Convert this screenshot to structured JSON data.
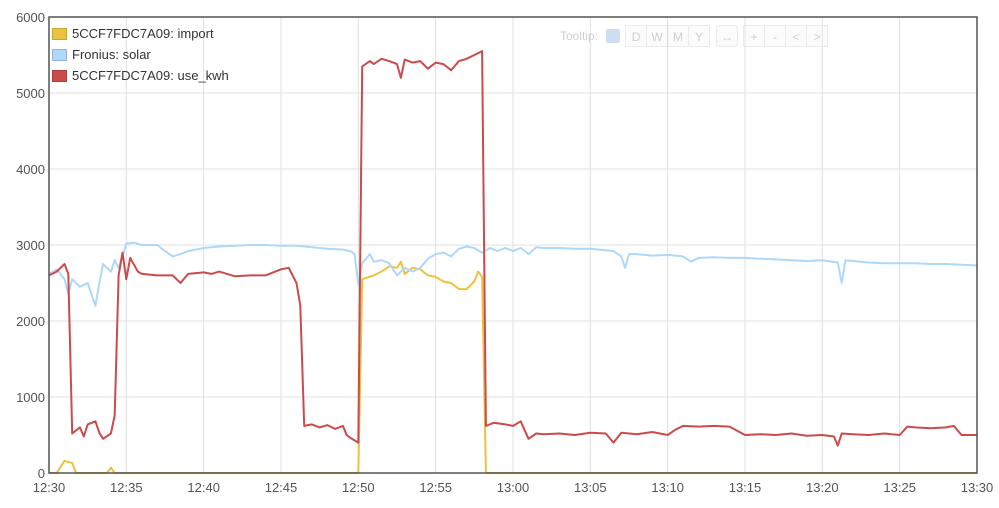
{
  "toolbar": {
    "tooltip_label": "Tooltip:",
    "range_buttons": [
      "D",
      "W",
      "M",
      "Y"
    ],
    "extra_buttons": [
      "↔",
      "+",
      "-",
      "<",
      ">"
    ]
  },
  "colors": {
    "import": "#edc240",
    "solar": "#afd8f8",
    "use_kwh": "#cb4b4b",
    "grid": "#e0e0e0",
    "axis": "#545454"
  },
  "chart_data": {
    "type": "line",
    "title": "",
    "xlabel": "",
    "ylabel": "",
    "xlim": [
      "12:30",
      "13:30"
    ],
    "ylim": [
      0,
      6000
    ],
    "x_ticks": [
      "12:30",
      "12:35",
      "12:40",
      "12:45",
      "12:50",
      "12:55",
      "13:00",
      "13:05",
      "13:10",
      "13:15",
      "13:20",
      "13:25",
      "13:30"
    ],
    "y_ticks": [
      0,
      1000,
      2000,
      3000,
      4000,
      5000,
      6000
    ],
    "grid": true,
    "legend_position": "top-left",
    "series": [
      {
        "name": "5CCF7FDC7A09: import",
        "color_key": "import",
        "points": [
          [
            "12:30:00",
            0
          ],
          [
            "12:30:30",
            0
          ],
          [
            "12:31:00",
            160
          ],
          [
            "12:31:30",
            130
          ],
          [
            "12:31:45",
            0
          ],
          [
            "12:33:45",
            0
          ],
          [
            "12:34:00",
            70
          ],
          [
            "12:34:15",
            0
          ],
          [
            "12:50:00",
            0
          ],
          [
            "12:50:15",
            2550
          ],
          [
            "12:51:00",
            2600
          ],
          [
            "12:51:30",
            2650
          ],
          [
            "12:52:00",
            2720
          ],
          [
            "12:52:30",
            2700
          ],
          [
            "12:52:45",
            2780
          ],
          [
            "12:53:00",
            2620
          ],
          [
            "12:53:30",
            2700
          ],
          [
            "12:54:00",
            2680
          ],
          [
            "12:54:30",
            2600
          ],
          [
            "12:55:00",
            2580
          ],
          [
            "12:55:30",
            2520
          ],
          [
            "12:56:00",
            2500
          ],
          [
            "12:56:30",
            2420
          ],
          [
            "12:57:00",
            2420
          ],
          [
            "12:57:30",
            2520
          ],
          [
            "12:57:45",
            2650
          ],
          [
            "12:58:00",
            2580
          ],
          [
            "12:58:15",
            0
          ],
          [
            "13:30:00",
            0
          ]
        ]
      },
      {
        "name": "Fronius: solar",
        "color_key": "solar",
        "points": [
          [
            "12:30:00",
            2620
          ],
          [
            "12:30:30",
            2680
          ],
          [
            "12:31:00",
            2550
          ],
          [
            "12:31:15",
            2350
          ],
          [
            "12:31:30",
            2550
          ],
          [
            "12:32:00",
            2450
          ],
          [
            "12:32:30",
            2500
          ],
          [
            "12:33:00",
            2200
          ],
          [
            "12:33:15",
            2500
          ],
          [
            "12:33:30",
            2750
          ],
          [
            "12:34:00",
            2650
          ],
          [
            "12:34:15",
            2800
          ],
          [
            "12:34:30",
            2700
          ],
          [
            "12:34:45",
            2850
          ],
          [
            "12:35:00",
            3020
          ],
          [
            "12:35:30",
            3030
          ],
          [
            "12:36:00",
            3000
          ],
          [
            "12:37:00",
            3000
          ],
          [
            "12:37:30",
            2920
          ],
          [
            "12:38:00",
            2850
          ],
          [
            "12:38:30",
            2880
          ],
          [
            "12:39:00",
            2920
          ],
          [
            "12:40:00",
            2960
          ],
          [
            "12:41:00",
            2980
          ],
          [
            "12:42:00",
            2990
          ],
          [
            "12:43:00",
            3000
          ],
          [
            "12:44:00",
            3000
          ],
          [
            "12:45:00",
            2990
          ],
          [
            "12:46:00",
            2990
          ],
          [
            "12:47:00",
            2970
          ],
          [
            "12:48:00",
            2950
          ],
          [
            "12:49:00",
            2940
          ],
          [
            "12:49:30",
            2920
          ],
          [
            "12:49:45",
            2880
          ],
          [
            "12:50:00",
            2480
          ],
          [
            "12:50:15",
            2760
          ],
          [
            "12:50:45",
            2880
          ],
          [
            "12:51:00",
            2780
          ],
          [
            "12:51:30",
            2800
          ],
          [
            "12:52:00",
            2760
          ],
          [
            "12:52:30",
            2600
          ],
          [
            "12:53:00",
            2700
          ],
          [
            "12:53:30",
            2650
          ],
          [
            "12:54:00",
            2700
          ],
          [
            "12:54:30",
            2820
          ],
          [
            "12:55:00",
            2880
          ],
          [
            "12:55:30",
            2900
          ],
          [
            "12:56:00",
            2850
          ],
          [
            "12:56:30",
            2950
          ],
          [
            "12:57:00",
            2980
          ],
          [
            "12:57:30",
            2960
          ],
          [
            "12:58:00",
            2900
          ],
          [
            "12:58:30",
            2960
          ],
          [
            "12:59:00",
            2920
          ],
          [
            "12:59:30",
            2960
          ],
          [
            "13:00:00",
            2920
          ],
          [
            "13:00:30",
            2960
          ],
          [
            "13:01:00",
            2880
          ],
          [
            "13:01:30",
            2970
          ],
          [
            "13:02:00",
            2960
          ],
          [
            "13:03:00",
            2960
          ],
          [
            "13:04:00",
            2950
          ],
          [
            "13:05:00",
            2950
          ],
          [
            "13:06:00",
            2930
          ],
          [
            "13:06:30",
            2920
          ],
          [
            "13:07:00",
            2850
          ],
          [
            "13:07:15",
            2700
          ],
          [
            "13:07:30",
            2880
          ],
          [
            "13:08:00",
            2880
          ],
          [
            "13:09:00",
            2860
          ],
          [
            "13:10:00",
            2870
          ],
          [
            "13:11:00",
            2850
          ],
          [
            "13:11:30",
            2780
          ],
          [
            "13:12:00",
            2830
          ],
          [
            "13:13:00",
            2840
          ],
          [
            "13:14:00",
            2830
          ],
          [
            "13:15:00",
            2830
          ],
          [
            "13:16:00",
            2820
          ],
          [
            "13:17:00",
            2810
          ],
          [
            "13:18:00",
            2800
          ],
          [
            "13:19:00",
            2790
          ],
          [
            "13:20:00",
            2800
          ],
          [
            "13:21:00",
            2770
          ],
          [
            "13:21:15",
            2500
          ],
          [
            "13:21:30",
            2800
          ],
          [
            "13:22:00",
            2790
          ],
          [
            "13:23:00",
            2770
          ],
          [
            "13:24:00",
            2760
          ],
          [
            "13:25:00",
            2760
          ],
          [
            "13:26:00",
            2760
          ],
          [
            "13:27:00",
            2750
          ],
          [
            "13:28:00",
            2750
          ],
          [
            "13:29:00",
            2740
          ],
          [
            "13:30:00",
            2730
          ]
        ]
      },
      {
        "name": "5CCF7FDC7A09: use_kwh",
        "color_key": "use_kwh",
        "points": [
          [
            "12:30:00",
            2600
          ],
          [
            "12:30:30",
            2650
          ],
          [
            "12:31:00",
            2750
          ],
          [
            "12:31:15",
            2620
          ],
          [
            "12:31:30",
            520
          ],
          [
            "12:32:00",
            600
          ],
          [
            "12:32:15",
            480
          ],
          [
            "12:32:30",
            640
          ],
          [
            "12:33:00",
            680
          ],
          [
            "12:33:15",
            530
          ],
          [
            "12:33:30",
            450
          ],
          [
            "12:34:00",
            520
          ],
          [
            "12:34:15",
            760
          ],
          [
            "12:34:30",
            2600
          ],
          [
            "12:34:45",
            2900
          ],
          [
            "12:35:00",
            2550
          ],
          [
            "12:35:15",
            2830
          ],
          [
            "12:35:45",
            2650
          ],
          [
            "12:36:00",
            2620
          ],
          [
            "12:37:00",
            2600
          ],
          [
            "12:38:00",
            2600
          ],
          [
            "12:38:30",
            2500
          ],
          [
            "12:39:00",
            2620
          ],
          [
            "12:40:00",
            2640
          ],
          [
            "12:40:30",
            2620
          ],
          [
            "12:41:00",
            2650
          ],
          [
            "12:42:00",
            2590
          ],
          [
            "12:43:00",
            2600
          ],
          [
            "12:44:00",
            2600
          ],
          [
            "12:45:00",
            2680
          ],
          [
            "12:45:30",
            2700
          ],
          [
            "12:46:00",
            2500
          ],
          [
            "12:46:15",
            2200
          ],
          [
            "12:46:30",
            620
          ],
          [
            "12:47:00",
            640
          ],
          [
            "12:47:30",
            600
          ],
          [
            "12:48:00",
            630
          ],
          [
            "12:48:30",
            580
          ],
          [
            "12:49:00",
            620
          ],
          [
            "12:49:15",
            500
          ],
          [
            "12:49:30",
            460
          ],
          [
            "12:50:00",
            400
          ],
          [
            "12:50:15",
            5350
          ],
          [
            "12:50:45",
            5420
          ],
          [
            "12:51:00",
            5380
          ],
          [
            "12:51:30",
            5450
          ],
          [
            "12:52:00",
            5420
          ],
          [
            "12:52:30",
            5380
          ],
          [
            "12:52:45",
            5200
          ],
          [
            "12:53:00",
            5440
          ],
          [
            "12:53:30",
            5400
          ],
          [
            "12:54:00",
            5420
          ],
          [
            "12:54:30",
            5320
          ],
          [
            "12:55:00",
            5400
          ],
          [
            "12:55:30",
            5380
          ],
          [
            "12:56:00",
            5300
          ],
          [
            "12:56:30",
            5420
          ],
          [
            "12:57:00",
            5450
          ],
          [
            "12:57:30",
            5500
          ],
          [
            "12:58:00",
            5550
          ],
          [
            "12:58:15",
            620
          ],
          [
            "12:58:45",
            660
          ],
          [
            "12:59:30",
            640
          ],
          [
            "13:00:00",
            620
          ],
          [
            "13:00:30",
            680
          ],
          [
            "13:01:00",
            450
          ],
          [
            "13:01:30",
            520
          ],
          [
            "13:02:00",
            510
          ],
          [
            "13:03:00",
            520
          ],
          [
            "13:04:00",
            500
          ],
          [
            "13:05:00",
            530
          ],
          [
            "13:06:00",
            520
          ],
          [
            "13:06:30",
            400
          ],
          [
            "13:07:00",
            530
          ],
          [
            "13:08:00",
            510
          ],
          [
            "13:09:00",
            540
          ],
          [
            "13:10:00",
            500
          ],
          [
            "13:10:30",
            570
          ],
          [
            "13:11:00",
            620
          ],
          [
            "13:12:00",
            610
          ],
          [
            "13:13:00",
            620
          ],
          [
            "13:14:00",
            610
          ],
          [
            "13:15:00",
            500
          ],
          [
            "13:16:00",
            510
          ],
          [
            "13:17:00",
            500
          ],
          [
            "13:18:00",
            520
          ],
          [
            "13:19:00",
            490
          ],
          [
            "13:20:00",
            500
          ],
          [
            "13:20:45",
            480
          ],
          [
            "13:21:00",
            360
          ],
          [
            "13:21:15",
            520
          ],
          [
            "13:22:00",
            510
          ],
          [
            "13:23:00",
            500
          ],
          [
            "13:24:00",
            520
          ],
          [
            "13:25:00",
            500
          ],
          [
            "13:25:30",
            610
          ],
          [
            "13:26:00",
            600
          ],
          [
            "13:27:00",
            590
          ],
          [
            "13:28:00",
            600
          ],
          [
            "13:28:30",
            620
          ],
          [
            "13:29:00",
            500
          ],
          [
            "13:30:00",
            500
          ]
        ]
      }
    ]
  }
}
